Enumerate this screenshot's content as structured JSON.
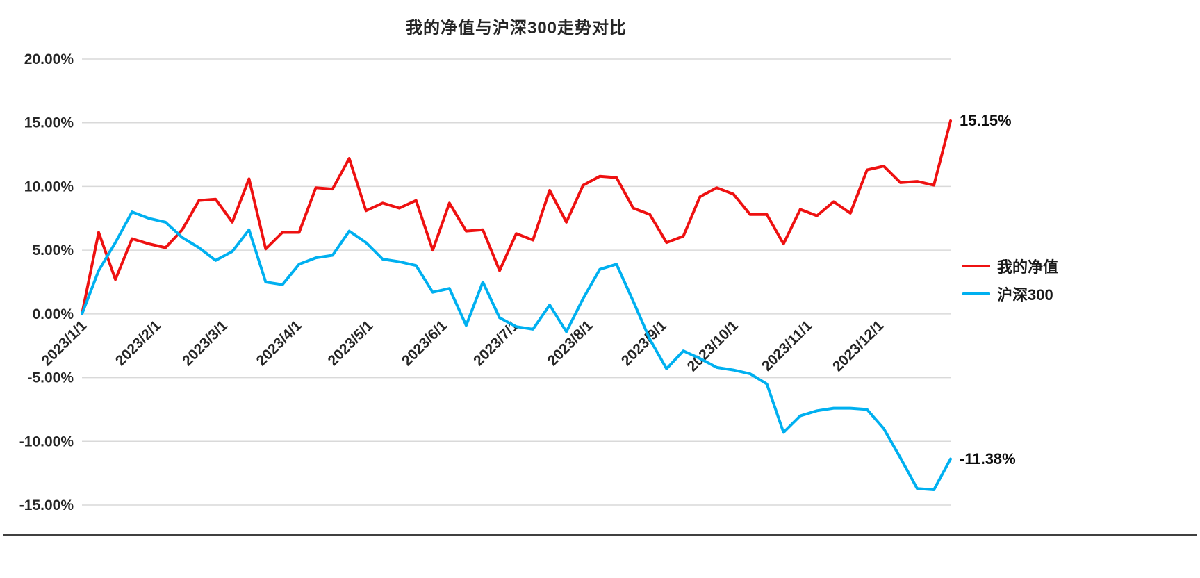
{
  "title": "我的净值与沪深300走势对比",
  "chart_data": {
    "type": "line",
    "title": "我的净值与沪深300走势对比",
    "x_unit": "week",
    "x_count": 53,
    "x_tick_labels": [
      "2023/1/1",
      "2023/2/1",
      "2023/3/1",
      "2023/4/1",
      "2023/5/1",
      "2023/6/1",
      "2023/7/1",
      "2023/8/1",
      "2023/9/1",
      "2023/10/1",
      "2023/11/1",
      "2023/12/1"
    ],
    "x_tick_positions": [
      0,
      4.43,
      8.43,
      12.86,
      17.14,
      21.57,
      25.86,
      30.29,
      34.71,
      39.0,
      43.43,
      47.71
    ],
    "ylim": [
      -15,
      20
    ],
    "y_ticks": [
      20,
      15,
      10,
      5,
      0,
      -5,
      -10,
      -15
    ],
    "y_tick_labels": [
      "20.00%",
      "15.00%",
      "10.00%",
      "5.00%",
      "0.00%",
      "-5.00%",
      "-10.00%",
      "-15.00%"
    ],
    "grid": true,
    "legend_position": "right",
    "series": [
      {
        "name": "我的净值",
        "color": "#ee1111",
        "end_label": "15.15%",
        "values": [
          0.0,
          6.4,
          2.7,
          5.9,
          5.5,
          5.2,
          6.6,
          8.9,
          9.0,
          7.2,
          10.6,
          5.1,
          6.4,
          6.4,
          9.9,
          9.8,
          12.2,
          8.1,
          8.7,
          8.3,
          8.9,
          5.0,
          8.7,
          6.5,
          6.6,
          3.4,
          6.3,
          5.8,
          9.7,
          7.2,
          10.1,
          10.8,
          10.7,
          8.3,
          7.8,
          5.6,
          6.1,
          9.2,
          9.9,
          9.4,
          7.8,
          7.8,
          5.5,
          8.2,
          7.7,
          8.8,
          7.9,
          11.3,
          11.6,
          10.3,
          10.4,
          10.1,
          15.15
        ]
      },
      {
        "name": "沪深300",
        "color": "#00b0f0",
        "end_label": "-11.38%",
        "values": [
          0.0,
          3.4,
          5.6,
          8.0,
          7.5,
          7.2,
          6.0,
          5.2,
          4.2,
          4.9,
          6.6,
          2.5,
          2.3,
          3.9,
          4.4,
          4.6,
          6.5,
          5.6,
          4.3,
          4.1,
          3.8,
          1.7,
          2.0,
          -0.9,
          2.5,
          -0.3,
          -1.0,
          -1.2,
          0.7,
          -1.4,
          1.2,
          3.5,
          3.9,
          1.0,
          -2.0,
          -4.3,
          -2.9,
          -3.5,
          -4.2,
          -4.4,
          -4.7,
          -5.5,
          -9.3,
          -8.0,
          -7.6,
          -7.4,
          -7.4,
          -7.5,
          -9.0,
          -11.3,
          -13.7,
          -13.8,
          -11.38
        ]
      }
    ],
    "colors": {
      "gridline": "#d9d9d9",
      "axis_text": "#262626",
      "bottom_border": "#404040"
    }
  }
}
